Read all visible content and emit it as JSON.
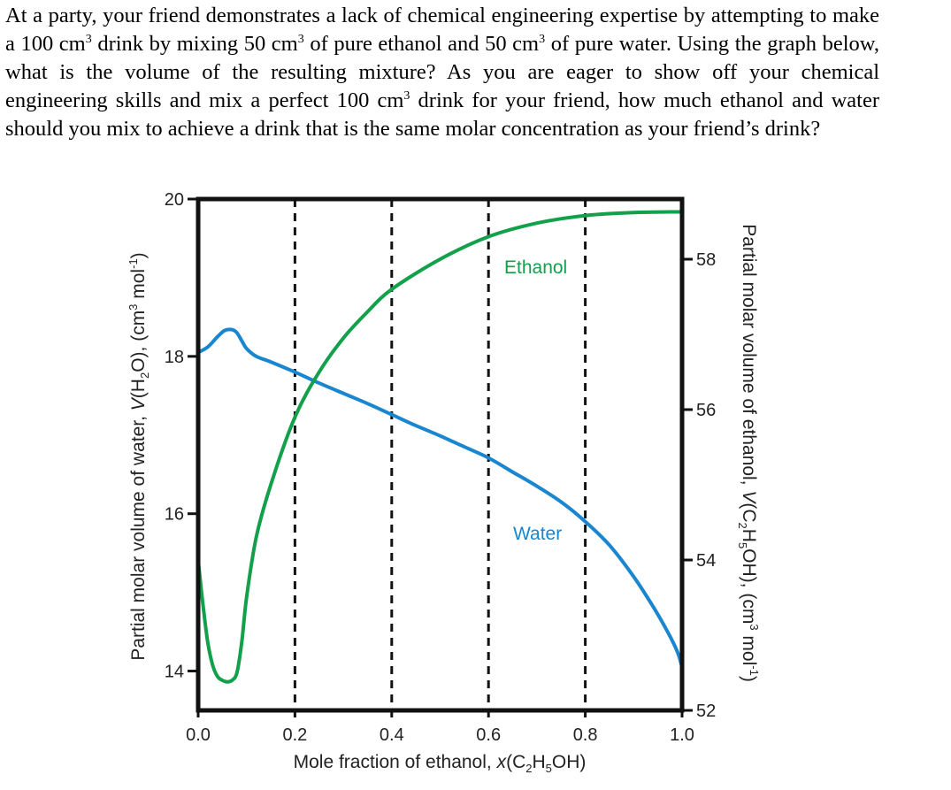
{
  "question": {
    "part1": "At a party, your friend demonstrates a lack of chemical engineering expertise by attempting to make a 100 cm",
    "part2": " drink by mixing 50 cm",
    "part3": " of pure ethanol and 50 cm",
    "part4": " of pure water. Using the graph below, what is the volume of the resulting mixture?  As you are eager to show off your chemical engineering skills and mix a perfect 100 cm",
    "part5": " drink for your friend, how much ethanol and water should you mix to achieve a drink that is the same molar concentration as your friend’s drink?",
    "sup": "3"
  },
  "chart_data": {
    "type": "line",
    "xlabel": {
      "prefix": "Mole fraction of ethanol, ",
      "symbol": "x",
      "open": "(C",
      "sub1": "2",
      "mid": "H",
      "sub2": "5",
      "close": "OH)"
    },
    "ylabel_left": {
      "prefix": "Partial molar volume of water, ",
      "symbol": "V",
      "open": "(H",
      "sub": "2",
      "close": "O), (cm",
      "sup": "3",
      "unit": " mol",
      "unit_sup": "-1",
      "end": ")"
    },
    "ylabel_right": {
      "prefix": "Partial molar volume of ethanol, ",
      "symbol": "V",
      "open": "(C",
      "sub1": "2",
      "mid": "H",
      "sub2": "5",
      "close": "OH), (cm",
      "sup": "3",
      "unit": " mol",
      "unit_sup": "-1",
      "end": ")"
    },
    "xlim": [
      0.0,
      1.0
    ],
    "ylim_left": [
      13.5,
      20
    ],
    "ylim_right": [
      52,
      58.8
    ],
    "x_ticks": [
      "0.0",
      "0.2",
      "0.4",
      "0.6",
      "0.8",
      "1.0"
    ],
    "y_left_ticks": [
      "14",
      "16",
      "18",
      "20"
    ],
    "y_right_ticks": [
      "52",
      "54",
      "56",
      "58"
    ],
    "dashed_gridlines_x": [
      0.2,
      0.4,
      0.6,
      0.8
    ],
    "series": [
      {
        "name": "Water",
        "axis": "left",
        "color": "#1a86cf",
        "x": [
          0.0,
          0.02,
          0.04,
          0.055,
          0.07,
          0.08,
          0.09,
          0.1,
          0.12,
          0.15,
          0.2,
          0.25,
          0.3,
          0.35,
          0.4,
          0.45,
          0.5,
          0.55,
          0.6,
          0.65,
          0.7,
          0.75,
          0.8,
          0.85,
          0.9,
          0.94,
          0.97,
          0.99,
          1.0
        ],
        "values": [
          18.05,
          18.12,
          18.25,
          18.33,
          18.34,
          18.3,
          18.2,
          18.1,
          18.0,
          17.93,
          17.8,
          17.66,
          17.53,
          17.4,
          17.26,
          17.12,
          16.99,
          16.85,
          16.71,
          16.53,
          16.35,
          16.15,
          15.9,
          15.6,
          15.2,
          14.82,
          14.5,
          14.25,
          14.05
        ]
      },
      {
        "name": "Ethanol",
        "axis": "right",
        "color": "#12a04a",
        "x": [
          0.0,
          0.01,
          0.02,
          0.03,
          0.04,
          0.05,
          0.06,
          0.07,
          0.08,
          0.09,
          0.1,
          0.12,
          0.15,
          0.2,
          0.25,
          0.3,
          0.35,
          0.4,
          0.5,
          0.6,
          0.7,
          0.8,
          0.9,
          1.0
        ],
        "values": [
          54.0,
          53.4,
          52.9,
          52.6,
          52.45,
          52.4,
          52.38,
          52.4,
          52.5,
          52.9,
          53.5,
          54.3,
          55.0,
          55.9,
          56.5,
          56.95,
          57.3,
          57.6,
          58.0,
          58.3,
          58.48,
          58.58,
          58.62,
          58.63
        ]
      }
    ]
  }
}
